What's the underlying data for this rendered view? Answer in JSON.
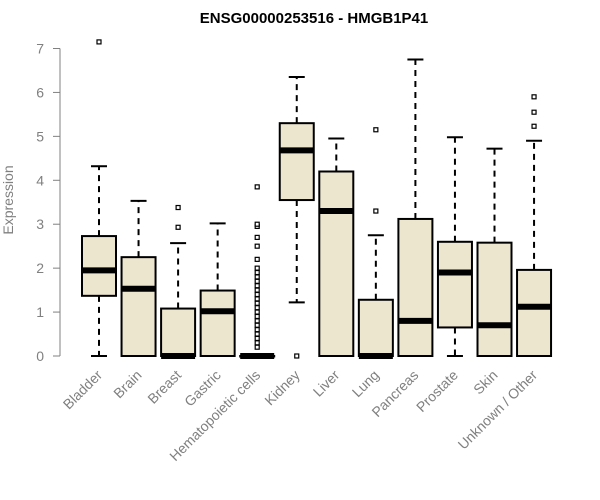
{
  "chart_data": {
    "type": "boxplot",
    "title": "ENSG00000253516 - HMGB1P41",
    "ylabel": "Expression",
    "xlabel": "",
    "ylim": [
      0,
      7
    ],
    "yticks": [
      0,
      1,
      2,
      3,
      4,
      5,
      6,
      7
    ],
    "grid": false,
    "colors": {
      "box_fill": "#ede6cf",
      "stroke": "#000000",
      "axis": "#808080"
    },
    "categories": [
      "Bladder",
      "Brain",
      "Breast",
      "Gastric",
      "Hematopoietic cells",
      "Kidney",
      "Liver",
      "Lung",
      "Pancreas",
      "Prostate",
      "Skin",
      "Unknown / Other"
    ],
    "boxes": [
      {
        "name": "Bladder",
        "min": 0,
        "q1": 1.37,
        "median": 1.95,
        "q3": 2.73,
        "max": 4.32,
        "outliers": [
          7.15
        ]
      },
      {
        "name": "Brain",
        "min": 0,
        "q1": 0,
        "median": 1.53,
        "q3": 2.25,
        "max": 3.53,
        "outliers": []
      },
      {
        "name": "Breast",
        "min": 0,
        "q1": 0,
        "median": 0,
        "q3": 1.08,
        "max": 2.57,
        "outliers": [
          2.93,
          3.38
        ]
      },
      {
        "name": "Gastric",
        "min": 0,
        "q1": 0,
        "median": 1.02,
        "q3": 1.49,
        "max": 3.02,
        "outliers": []
      },
      {
        "name": "Hematopoietic cells",
        "min": 0,
        "q1": 0,
        "median": 0,
        "q3": 0,
        "max": 0,
        "outliers": [
          0.2,
          0.3,
          0.4,
          0.5,
          0.6,
          0.7,
          0.8,
          0.9,
          1.0,
          1.1,
          1.2,
          1.3,
          1.4,
          1.5,
          1.6,
          1.7,
          1.8,
          1.9,
          2.0,
          2.2,
          2.5,
          2.7,
          2.95,
          3.0,
          3.85
        ]
      },
      {
        "name": "Kidney",
        "min": 1.22,
        "q1": 3.55,
        "median": 4.68,
        "q3": 5.3,
        "max": 6.35,
        "outliers": [
          0
        ]
      },
      {
        "name": "Liver",
        "min": 0,
        "q1": 0,
        "median": 3.3,
        "q3": 4.2,
        "max": 4.95,
        "outliers": []
      },
      {
        "name": "Lung",
        "min": 0,
        "q1": 0,
        "median": 0,
        "q3": 1.28,
        "max": 2.75,
        "outliers": [
          3.3,
          5.15
        ]
      },
      {
        "name": "Pancreas",
        "min": 0,
        "q1": 0,
        "median": 0.8,
        "q3": 3.12,
        "max": 6.75,
        "outliers": []
      },
      {
        "name": "Prostate",
        "min": 0,
        "q1": 0.65,
        "median": 1.9,
        "q3": 2.6,
        "max": 4.98,
        "outliers": []
      },
      {
        "name": "Skin",
        "min": 0,
        "q1": 0,
        "median": 0.7,
        "q3": 2.58,
        "max": 4.72,
        "outliers": []
      },
      {
        "name": "Unknown / Other",
        "min": 0,
        "q1": 0,
        "median": 1.12,
        "q3": 1.96,
        "max": 4.9,
        "outliers": [
          5.23,
          5.55,
          5.9
        ]
      }
    ]
  }
}
